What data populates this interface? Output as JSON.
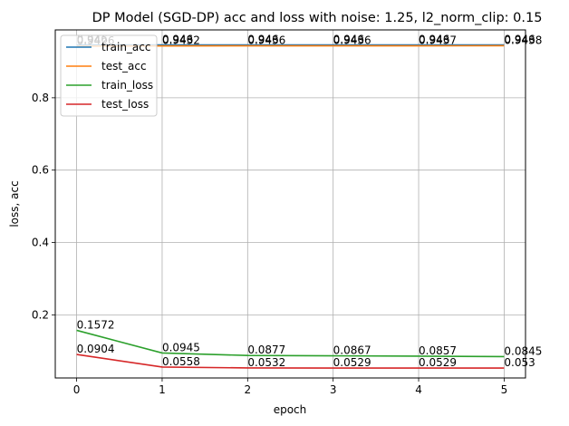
{
  "chart_data": {
    "type": "line",
    "title": "DP Model (SGD-DP) acc and loss with noise: 1.25, l2_norm_clip: 0.15",
    "xlabel": "epoch",
    "ylabel": "loss, acc",
    "x": [
      0,
      1,
      2,
      3,
      4,
      5
    ],
    "xlim": [
      -0.25,
      5.25
    ],
    "ylim": [
      0.0255,
      0.9876
    ],
    "x_ticks": [
      "0",
      "1",
      "2",
      "3",
      "4",
      "5"
    ],
    "y_ticks": [
      0.2,
      0.4,
      0.6,
      0.8
    ],
    "y_tick_labels": [
      "0.2",
      "0.4",
      "0.6",
      "0.8"
    ],
    "grid": true,
    "legend_position": "top-left",
    "series": [
      {
        "name": "train_acc",
        "color": "#1f77b4",
        "values": [
          0.946,
          0.946,
          0.946,
          0.946,
          0.946,
          0.946
        ],
        "labels": [
          "0.946",
          "0.946",
          "0.946",
          "0.946",
          "0.946",
          "0.946"
        ]
      },
      {
        "name": "test_acc",
        "color": "#ff7f0e",
        "values": [
          0.9426,
          0.9432,
          0.9436,
          0.9436,
          0.9437,
          0.9438
        ],
        "labels": [
          "0.9426",
          "0.9432",
          "0.9436",
          "0.9436",
          "0.9437",
          "0.9438"
        ]
      },
      {
        "name": "train_loss",
        "color": "#2ca02c",
        "values": [
          0.1572,
          0.0945,
          0.0877,
          0.0867,
          0.0857,
          0.0845
        ],
        "labels": [
          "0.1572",
          "0.0945",
          "0.0877",
          "0.0867",
          "0.0857",
          "0.0845"
        ]
      },
      {
        "name": "test_loss",
        "color": "#d62728",
        "values": [
          0.0904,
          0.0558,
          0.0532,
          0.0529,
          0.0529,
          0.053
        ],
        "labels": [
          "0.0904",
          "0.0558",
          "0.0532",
          "0.0529",
          "0.0529",
          "0.053"
        ]
      }
    ]
  }
}
